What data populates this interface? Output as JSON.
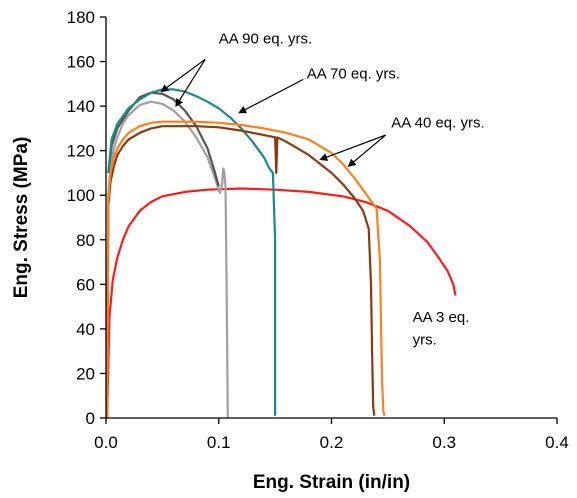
{
  "chart_data": {
    "type": "line",
    "title": "",
    "xlabel": "Eng. Strain (in/in)",
    "ylabel": "Eng. Stress (MPa)",
    "xlim": [
      0,
      0.4
    ],
    "ylim": [
      0,
      180
    ],
    "xticks": [
      0,
      0.1,
      0.2,
      0.3,
      0.4
    ],
    "xtick_labels": [
      "0.0",
      "0.1",
      "0.2",
      "0.3",
      "0.4"
    ],
    "yticks": [
      0,
      20,
      40,
      60,
      80,
      100,
      120,
      140,
      160,
      180
    ],
    "ytick_labels": [
      "0",
      "20",
      "40",
      "60",
      "80",
      "100",
      "120",
      "140",
      "160",
      "180"
    ],
    "grid": false,
    "legend": "none",
    "series": [
      {
        "color": "#ff1a1a",
        "x": [
          0.001,
          0.003,
          0.006,
          0.01,
          0.015,
          0.02,
          0.03,
          0.04,
          0.05,
          0.07,
          0.09,
          0.12,
          0.15,
          0.18,
          0.21,
          0.23,
          0.25,
          0.27,
          0.285,
          0.295,
          0.303,
          0.308,
          0.31
        ],
        "y": [
          0,
          45,
          62,
          72,
          80,
          86,
          93,
          97,
          99.5,
          101.5,
          102.5,
          103,
          102.5,
          101.5,
          99.5,
          97,
          93,
          86,
          79,
          72,
          66,
          60,
          55
        ]
      },
      {
        "color": "#a0a0a0",
        "x": [
          0.001,
          0.002,
          0.004,
          0.007,
          0.01,
          0.015,
          0.02,
          0.03,
          0.04,
          0.05,
          0.06,
          0.07,
          0.08,
          0.09,
          0.095,
          0.099,
          0.101,
          0.103,
          0.104,
          0.105,
          0.106,
          0.107,
          0.108
        ],
        "y": [
          0,
          100,
          113,
          121,
          126,
          132,
          136,
          140.5,
          142,
          141,
          138,
          133,
          126,
          117,
          110,
          104,
          101,
          105,
          112,
          110,
          104,
          60,
          0
        ]
      },
      {
        "color": "#555555",
        "x": [
          0.002,
          0.005,
          0.01,
          0.02,
          0.03,
          0.04,
          0.05,
          0.06,
          0.07,
          0.08,
          0.09,
          0.095,
          0.1
        ],
        "y": [
          110,
          122,
          130,
          138,
          144,
          146,
          145.5,
          143,
          138,
          131,
          121,
          113,
          104
        ]
      },
      {
        "color": "#1a8a8a",
        "x": [
          0.002,
          0.005,
          0.01,
          0.02,
          0.03,
          0.04,
          0.05,
          0.06,
          0.07,
          0.08,
          0.09,
          0.1,
          0.11,
          0.12,
          0.13,
          0.14,
          0.145,
          0.148,
          0.15,
          0.15
        ],
        "y": [
          110,
          125,
          132,
          139,
          143,
          146,
          147.5,
          147.5,
          146.5,
          144.5,
          142,
          139,
          135,
          130,
          124,
          117,
          112,
          110,
          80,
          1
        ]
      },
      {
        "color": "#8b3a10",
        "x": [
          0.001,
          0.002,
          0.004,
          0.007,
          0.01,
          0.015,
          0.02,
          0.03,
          0.04,
          0.05,
          0.06,
          0.08,
          0.1,
          0.12,
          0.14,
          0.15,
          0.151,
          0.152,
          0.16,
          0.17,
          0.18,
          0.19,
          0.2,
          0.21,
          0.22,
          0.228,
          0.233,
          0.235,
          0.236,
          0.237,
          0.238
        ],
        "y": [
          0,
          95,
          106,
          113,
          118,
          122,
          125,
          128,
          130,
          131,
          131,
          131,
          130.5,
          129,
          127,
          126,
          110,
          126,
          124,
          121,
          118,
          114,
          110,
          105,
          99,
          93,
          85,
          60,
          30,
          5,
          1
        ]
      },
      {
        "color": "#ff7f1a",
        "x": [
          0.001,
          0.002,
          0.004,
          0.007,
          0.01,
          0.015,
          0.02,
          0.03,
          0.04,
          0.05,
          0.06,
          0.08,
          0.1,
          0.12,
          0.14,
          0.16,
          0.18,
          0.2,
          0.21,
          0.22,
          0.23,
          0.24,
          0.243,
          0.244,
          0.245,
          0.246,
          0.247
        ],
        "y": [
          0,
          98,
          110,
          117,
          121,
          125,
          128,
          131,
          132.5,
          133,
          133,
          133,
          132.5,
          131.5,
          130,
          128,
          125,
          119,
          114,
          108,
          101,
          94,
          70,
          40,
          15,
          3,
          1
        ]
      }
    ],
    "annotations": [
      {
        "text": "AA 90 eq. yrs.",
        "anchor": [
          0.1,
          168
        ]
      },
      {
        "text": "AA 70 eq. yrs.",
        "anchor": [
          0.178,
          152.5
        ]
      },
      {
        "text": "AA 40 eq. yrs.",
        "anchor": [
          0.253,
          130.5
        ]
      },
      {
        "text": "AA 3 eq.",
        "anchor": [
          0.272,
          43
        ]
      },
      {
        "text": "yrs.",
        "anchor": [
          0.272,
          33
        ]
      }
    ],
    "arrows": [
      {
        "from": [
          0.088,
          161
        ],
        "to": [
          0.049,
          146.5
        ]
      },
      {
        "from": [
          0.088,
          161
        ],
        "to": [
          0.062,
          140
        ]
      },
      {
        "from": [
          0.175,
          152
        ],
        "to": [
          0.118,
          137
        ]
      },
      {
        "from": [
          0.248,
          127
        ],
        "to": [
          0.19,
          116
        ]
      },
      {
        "from": [
          0.248,
          127
        ],
        "to": [
          0.215,
          113
        ]
      }
    ]
  }
}
